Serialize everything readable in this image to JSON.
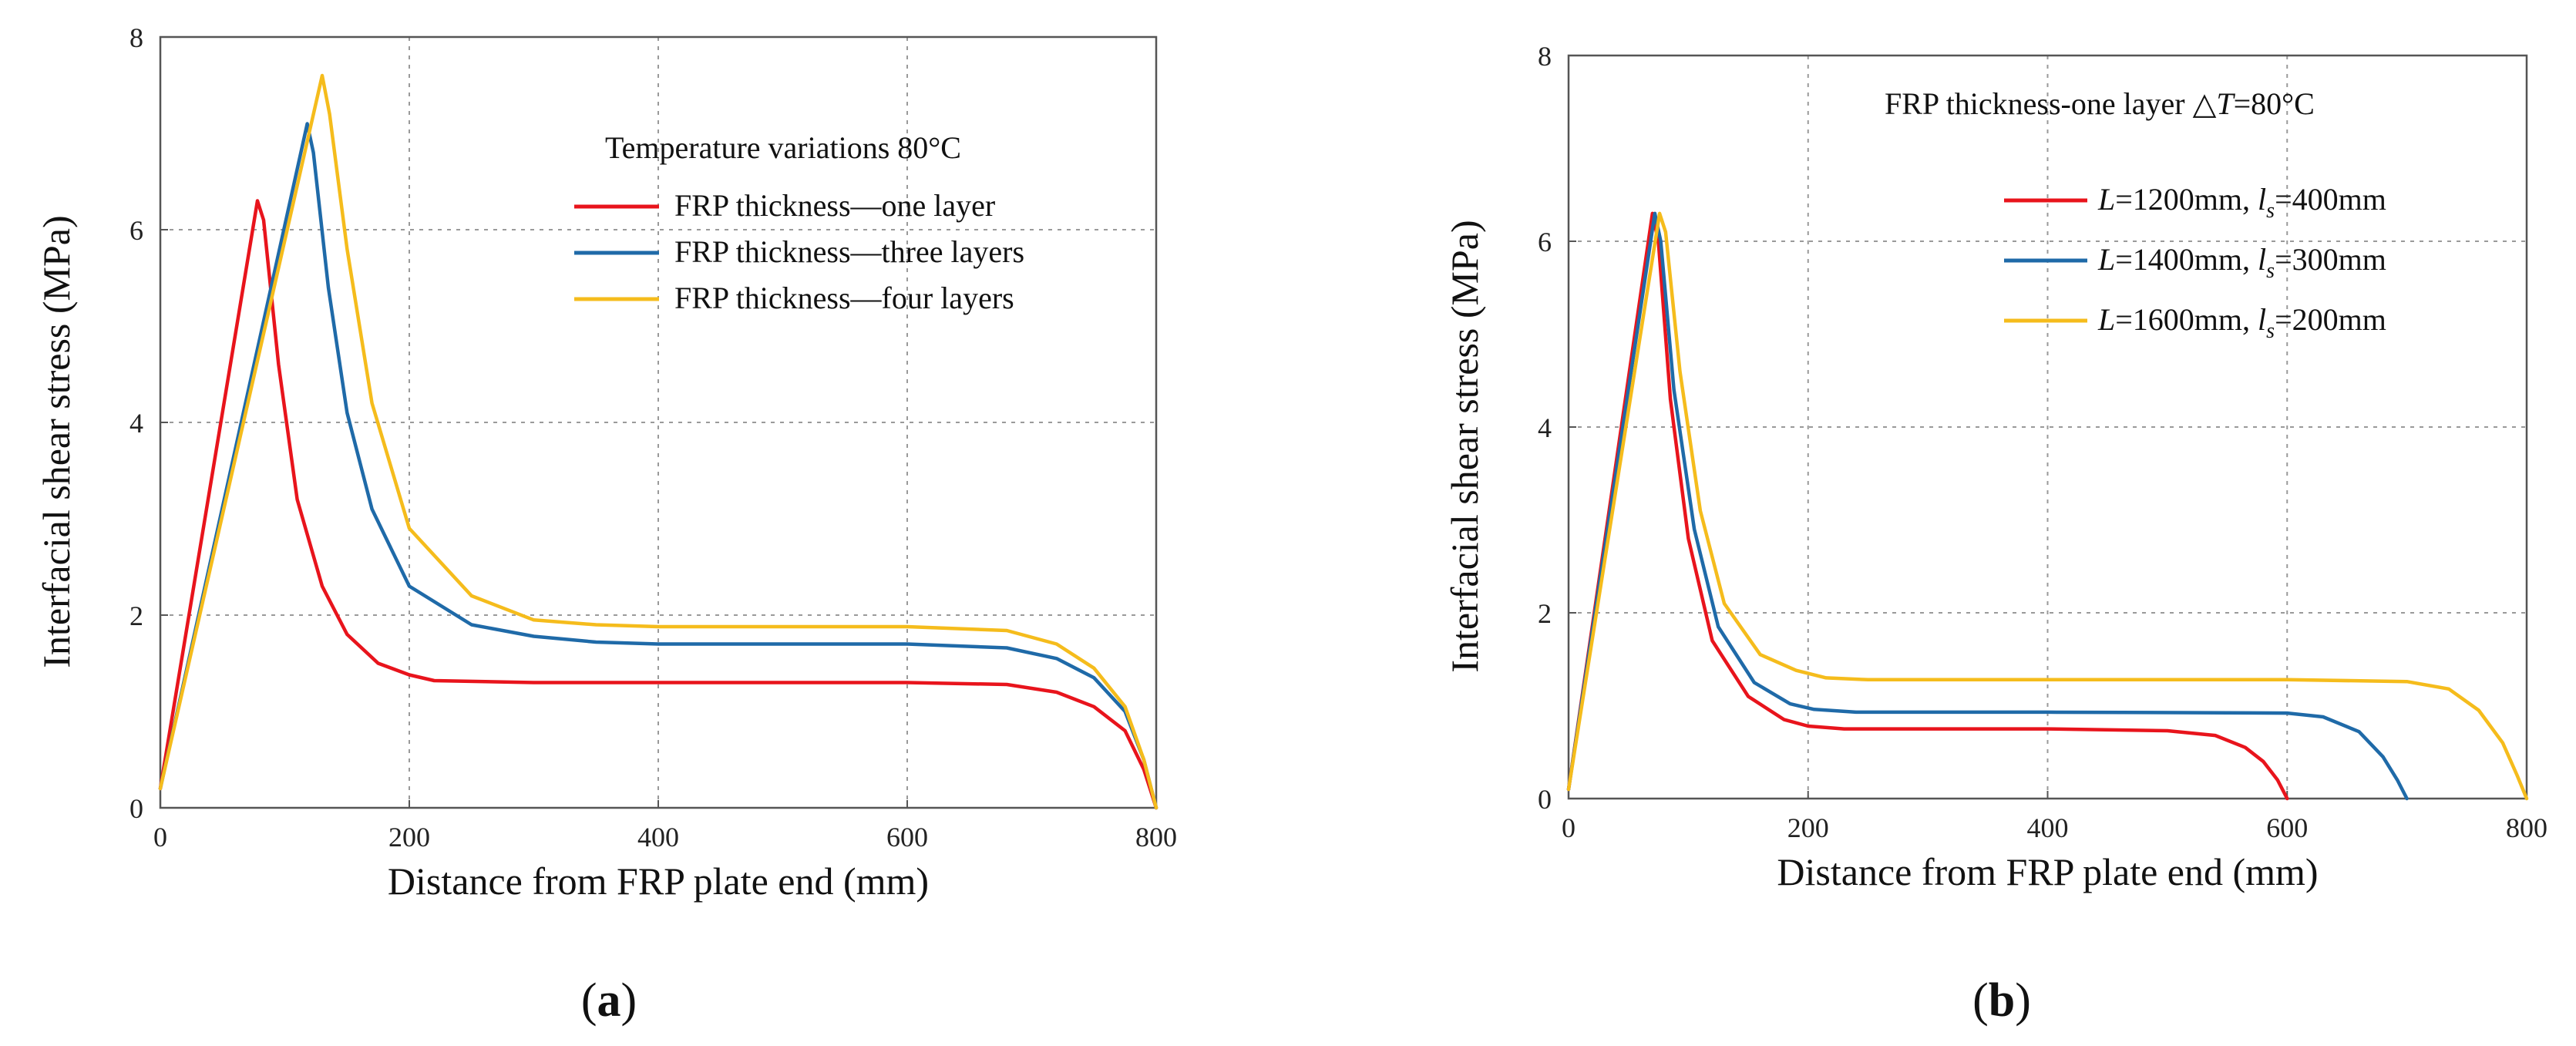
{
  "chart_data": [
    {
      "type": "line",
      "subfigure_label": "a",
      "xlabel": "Distance from FRP plate end (mm)",
      "ylabel": "Interfacial shear stress (MPa)",
      "xlim": [
        0,
        800
      ],
      "ylim": [
        0,
        8
      ],
      "xticks": [
        "0",
        "200",
        "400",
        "600",
        "800"
      ],
      "yticks": [
        "0",
        "2",
        "4",
        "6",
        "8"
      ],
      "grid": true,
      "legend_title": "Temperature variations 80°C",
      "legend_position": "top-right",
      "series": [
        {
          "name": "FRP thickness—one layer",
          "color": "#e8141c",
          "x": [
            0,
            78,
            83,
            95,
            110,
            130,
            150,
            175,
            200,
            220,
            300,
            400,
            600,
            680,
            720,
            750,
            775,
            790,
            800
          ],
          "y": [
            0.2,
            6.3,
            6.1,
            4.6,
            3.2,
            2.3,
            1.8,
            1.5,
            1.38,
            1.32,
            1.3,
            1.3,
            1.3,
            1.28,
            1.2,
            1.05,
            0.8,
            0.4,
            0
          ]
        },
        {
          "name": "FRP thickness—three layers",
          "color": "#1f6aa8",
          "x": [
            0,
            118,
            123,
            135,
            150,
            170,
            200,
            250,
            300,
            350,
            400,
            600,
            680,
            720,
            750,
            775,
            790,
            800
          ],
          "y": [
            0.2,
            7.1,
            6.8,
            5.4,
            4.1,
            3.1,
            2.3,
            1.9,
            1.78,
            1.72,
            1.7,
            1.7,
            1.66,
            1.55,
            1.35,
            1.0,
            0.5,
            0
          ]
        },
        {
          "name": "FRP thickness—four layers",
          "color": "#f5bc1c",
          "x": [
            0,
            130,
            136,
            150,
            170,
            200,
            250,
            300,
            350,
            400,
            600,
            680,
            720,
            750,
            775,
            790,
            800
          ],
          "y": [
            0.2,
            7.6,
            7.2,
            5.8,
            4.2,
            2.9,
            2.2,
            1.95,
            1.9,
            1.88,
            1.88,
            1.84,
            1.7,
            1.45,
            1.05,
            0.5,
            0
          ]
        }
      ]
    },
    {
      "type": "line",
      "subfigure_label": "b",
      "xlabel": "Distance from FRP plate end (mm)",
      "ylabel": "Interfacial shear stress (MPa)",
      "xlim": [
        0,
        800
      ],
      "ylim": [
        0,
        8
      ],
      "xticks": [
        "0",
        "200",
        "400",
        "600",
        "800"
      ],
      "yticks": [
        "0",
        "2",
        "4",
        "6",
        "8"
      ],
      "grid": true,
      "legend_title": "FRP thickness-one layer △T=80°C",
      "legend_position": "top-right",
      "series": [
        {
          "name": "L=1200mm, ls=400mm",
          "label_L": "1200mm",
          "label_ls": "400mm",
          "color": "#e8141c",
          "x": [
            0,
            70,
            75,
            85,
            100,
            120,
            150,
            180,
            200,
            230,
            300,
            400,
            500,
            540,
            565,
            580,
            592,
            600
          ],
          "y": [
            0.1,
            6.3,
            6.0,
            4.3,
            2.8,
            1.7,
            1.1,
            0.85,
            0.78,
            0.75,
            0.75,
            0.75,
            0.73,
            0.68,
            0.55,
            0.4,
            0.2,
            0
          ]
        },
        {
          "name": "L=1400mm, ls=300mm",
          "label_L": "1400mm",
          "label_ls": "300mm",
          "color": "#1f6aa8",
          "x": [
            0,
            72,
            77,
            88,
            105,
            125,
            155,
            185,
            205,
            240,
            300,
            400,
            600,
            630,
            660,
            680,
            692,
            700
          ],
          "y": [
            0.1,
            6.3,
            6.0,
            4.4,
            2.9,
            1.85,
            1.25,
            1.02,
            0.96,
            0.93,
            0.93,
            0.93,
            0.92,
            0.88,
            0.72,
            0.45,
            0.2,
            0
          ]
        },
        {
          "name": "L=1600mm, ls=200mm",
          "label_L": "1600mm",
          "label_ls": "200mm",
          "color": "#f5bc1c",
          "x": [
            0,
            76,
            81,
            93,
            110,
            130,
            160,
            190,
            215,
            250,
            300,
            400,
            600,
            700,
            735,
            760,
            780,
            792,
            800
          ],
          "y": [
            0.1,
            6.3,
            6.1,
            4.6,
            3.1,
            2.1,
            1.55,
            1.38,
            1.3,
            1.28,
            1.28,
            1.28,
            1.28,
            1.26,
            1.18,
            0.95,
            0.6,
            0.25,
            0
          ]
        }
      ]
    }
  ]
}
